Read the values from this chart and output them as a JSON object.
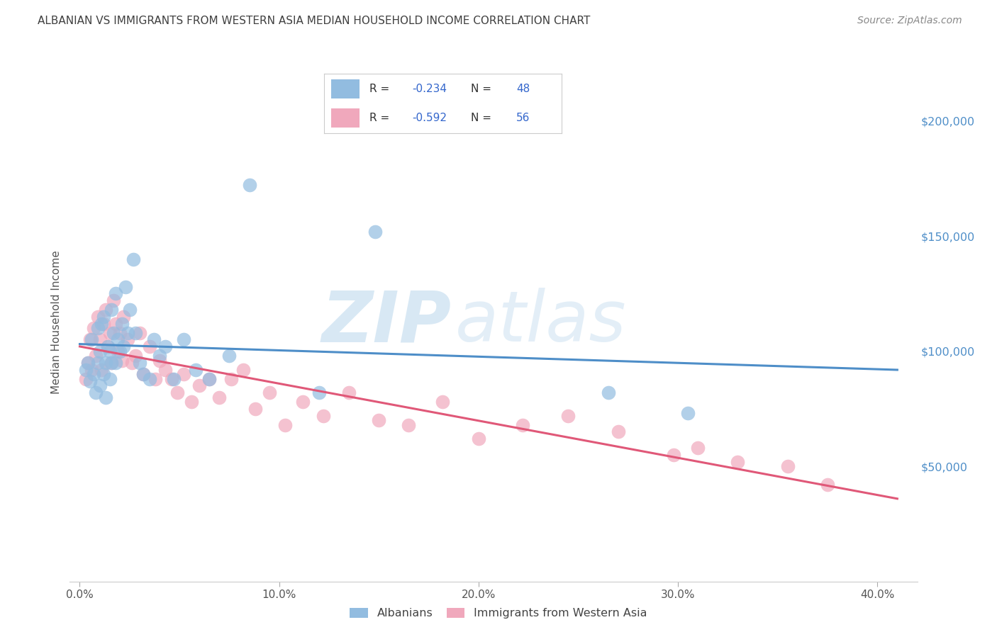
{
  "title": "ALBANIAN VS IMMIGRANTS FROM WESTERN ASIA MEDIAN HOUSEHOLD INCOME CORRELATION CHART",
  "source": "Source: ZipAtlas.com",
  "ylabel": "Median Household Income",
  "watermark_zip": "ZIP",
  "watermark_atlas": "atlas",
  "y_ticks": [
    50000,
    100000,
    150000,
    200000
  ],
  "y_tick_labels": [
    "$50,000",
    "$100,000",
    "$150,000",
    "$200,000"
  ],
  "x_tick_labels": [
    "0.0%",
    "10.0%",
    "20.0%",
    "30.0%",
    "40.0%"
  ],
  "x_ticks": [
    0.0,
    0.1,
    0.2,
    0.3,
    0.4
  ],
  "ylim": [
    0,
    225000
  ],
  "xlim": [
    -0.005,
    0.42
  ],
  "bg_color": "#ffffff",
  "grid_color": "#cccccc",
  "blue_color": "#92bce0",
  "pink_color": "#f0a8bc",
  "blue_line_color": "#4e8ec8",
  "pink_line_color": "#e05878",
  "title_color": "#404040",
  "source_color": "#888888",
  "legend_color": "#3366cc",
  "albanians_x": [
    0.003,
    0.004,
    0.005,
    0.006,
    0.007,
    0.008,
    0.009,
    0.009,
    0.01,
    0.01,
    0.011,
    0.012,
    0.012,
    0.013,
    0.013,
    0.014,
    0.015,
    0.015,
    0.016,
    0.016,
    0.017,
    0.018,
    0.018,
    0.019,
    0.02,
    0.021,
    0.022,
    0.023,
    0.024,
    0.025,
    0.027,
    0.028,
    0.03,
    0.032,
    0.035,
    0.037,
    0.04,
    0.043,
    0.047,
    0.052,
    0.058,
    0.065,
    0.075,
    0.085,
    0.12,
    0.148,
    0.265,
    0.305
  ],
  "albanians_y": [
    92000,
    95000,
    87000,
    105000,
    90000,
    82000,
    95000,
    110000,
    85000,
    100000,
    112000,
    115000,
    90000,
    95000,
    80000,
    102000,
    100000,
    88000,
    118000,
    95000,
    108000,
    125000,
    95000,
    105000,
    100000,
    112000,
    102000,
    128000,
    108000,
    118000,
    140000,
    108000,
    95000,
    90000,
    88000,
    105000,
    98000,
    102000,
    88000,
    105000,
    92000,
    88000,
    98000,
    172000,
    82000,
    152000,
    82000,
    73000
  ],
  "western_asia_x": [
    0.003,
    0.004,
    0.005,
    0.006,
    0.007,
    0.008,
    0.009,
    0.01,
    0.011,
    0.012,
    0.013,
    0.014,
    0.015,
    0.016,
    0.017,
    0.018,
    0.019,
    0.02,
    0.021,
    0.022,
    0.024,
    0.026,
    0.028,
    0.03,
    0.032,
    0.035,
    0.038,
    0.04,
    0.043,
    0.046,
    0.049,
    0.052,
    0.056,
    0.06,
    0.065,
    0.07,
    0.076,
    0.082,
    0.088,
    0.095,
    0.103,
    0.112,
    0.122,
    0.135,
    0.15,
    0.165,
    0.182,
    0.2,
    0.222,
    0.245,
    0.27,
    0.298,
    0.31,
    0.33,
    0.355,
    0.375
  ],
  "western_asia_y": [
    88000,
    95000,
    105000,
    92000,
    110000,
    98000,
    115000,
    105000,
    92000,
    112000,
    118000,
    102000,
    108000,
    95000,
    122000,
    112000,
    100000,
    108000,
    96000,
    115000,
    105000,
    95000,
    98000,
    108000,
    90000,
    102000,
    88000,
    96000,
    92000,
    88000,
    82000,
    90000,
    78000,
    85000,
    88000,
    80000,
    88000,
    92000,
    75000,
    82000,
    68000,
    78000,
    72000,
    82000,
    70000,
    68000,
    78000,
    62000,
    68000,
    72000,
    65000,
    55000,
    58000,
    52000,
    50000,
    42000
  ]
}
